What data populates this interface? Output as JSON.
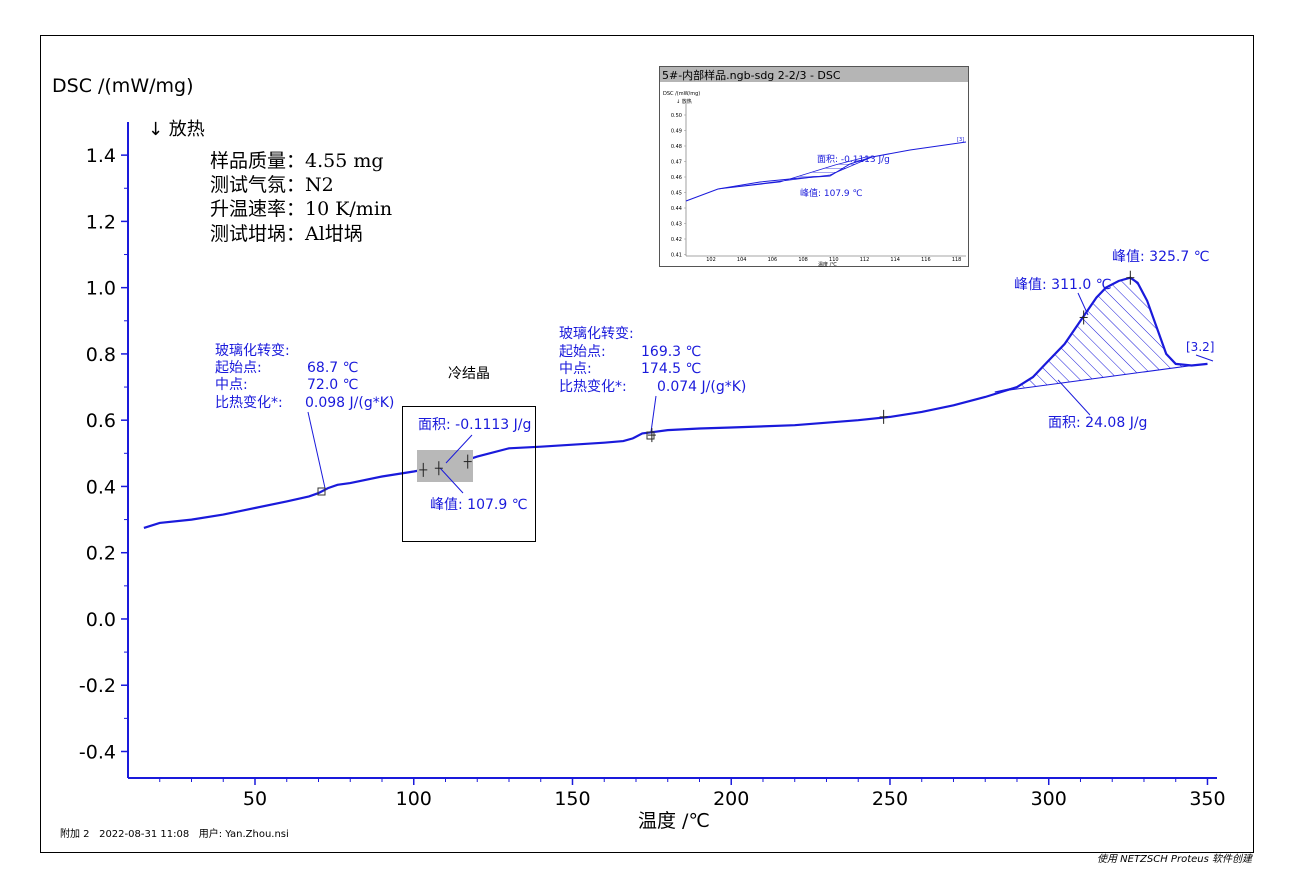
{
  "chart_data": {
    "type": "line",
    "ylabel": "DSC /(mW/mg)",
    "exo_label": "↓ 放热",
    "xlabel": "温度 /℃",
    "xlim": [
      10,
      353
    ],
    "ylim": [
      -0.48,
      1.5
    ],
    "x_ticks": [
      "50",
      "100",
      "150",
      "200",
      "250",
      "300",
      "350"
    ],
    "y_ticks": [
      "1.4",
      "1.2",
      "1.0",
      "0.8",
      "0.6",
      "0.4",
      "0.2",
      "0.0",
      "-0.2",
      "-0.4"
    ],
    "info_lines": [
      "样品质量：4.55 mg",
      "测试气氛：N2",
      "升温速率：10 K/min",
      "测试坩埚：Al坩埚"
    ],
    "series": [
      {
        "color": "#1a1adb",
        "x": [
          15,
          20,
          30,
          40,
          50,
          60,
          67,
          70,
          73,
          76,
          80,
          90,
          100,
          104,
          108,
          112,
          120,
          130,
          140,
          150,
          160,
          166,
          169,
          172,
          176,
          180,
          190,
          200,
          220,
          240,
          250,
          260,
          270,
          280,
          290,
          295,
          300,
          305,
          310,
          315,
          318,
          322,
          325.7,
          328,
          331,
          334,
          337,
          340,
          345,
          350
        ],
        "y": [
          0.275,
          0.29,
          0.3,
          0.315,
          0.335,
          0.355,
          0.37,
          0.38,
          0.395,
          0.405,
          0.41,
          0.43,
          0.445,
          0.452,
          0.455,
          0.465,
          0.49,
          0.515,
          0.52,
          0.526,
          0.532,
          0.537,
          0.545,
          0.56,
          0.565,
          0.57,
          0.575,
          0.578,
          0.585,
          0.6,
          0.61,
          0.625,
          0.645,
          0.67,
          0.7,
          0.73,
          0.78,
          0.83,
          0.9,
          0.97,
          1.0,
          1.02,
          1.03,
          1.015,
          0.96,
          0.88,
          0.8,
          0.77,
          0.765,
          0.77
        ]
      }
    ],
    "annotations": {
      "glass1": {
        "title": "玻璃化转变:",
        "onset_label": "起始点:",
        "onset_value": "68.7 ℃",
        "mid_label": "中点:",
        "mid_value": "72.0 ℃",
        "cp_label": "比热变化*:",
        "cp_value": "0.098 J/(g*K)"
      },
      "glass2": {
        "title": "玻璃化转变:",
        "onset_label": "起始点:",
        "onset_value": "169.3 ℃",
        "mid_label": "中点:",
        "mid_value": "174.5 ℃",
        "cp_label": "比热变化*:",
        "cp_value": "0.074 J/(g*K)"
      },
      "cold_cryst": "冷结晶",
      "cc_area": "面积: -0.1113 J/g",
      "cc_peak": "峰值: 107.9 ℃",
      "melt_peak1": "峰值: 311.0 ℃",
      "melt_peak2": "峰值: 325.7 ℃",
      "melt_area": "面积: 24.08 J/g",
      "end_marker": "[3.2]"
    },
    "inset": {
      "title": "5#-内部样品.ngb-sdg 2-2/3 - DSC",
      "ylabel": "DSC /(mW/mg)",
      "exo_label": "↓ 放热",
      "xlabel": "温度 /℃",
      "y_ticks": [
        "0.50",
        "0.49",
        "0.48",
        "0.47",
        "0.46",
        "0.45",
        "0.44",
        "0.43",
        "0.42",
        "0.41"
      ],
      "x_ticks": [
        "102",
        "104",
        "106",
        "108",
        "110",
        "112",
        "114",
        "116",
        "118"
      ],
      "area_label": "面积: -0.1113 J/g",
      "peak_label": "峰值: 107.9 ℃",
      "end_marker": "[3]"
    }
  },
  "footer": {
    "left": "附加 2   2022-08-31 11:08   用户: Yan.Zhou.nsi",
    "right": "使用 NETZSCH Proteus 软件创建"
  }
}
